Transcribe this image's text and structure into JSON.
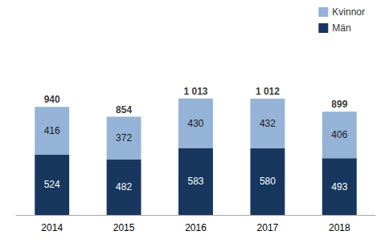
{
  "chart_data": {
    "type": "bar",
    "categories": [
      "2014",
      "2015",
      "2016",
      "2017",
      "2018"
    ],
    "series": [
      {
        "name": "Män",
        "color": "#17375e",
        "values": [
          524,
          482,
          583,
          580,
          493
        ]
      },
      {
        "name": "Kvinnor",
        "color": "#95b3d7",
        "values": [
          416,
          372,
          430,
          432,
          406
        ]
      }
    ],
    "totals": [
      940,
      854,
      1013,
      1012,
      899
    ],
    "total_labels": [
      "940",
      "854",
      "1 013",
      "1 012",
      "899"
    ],
    "stacked": true,
    "data_labels": true,
    "legend": "top-right",
    "grid": false,
    "tick_labels": "x",
    "ylim": [
      0,
      1800
    ]
  }
}
